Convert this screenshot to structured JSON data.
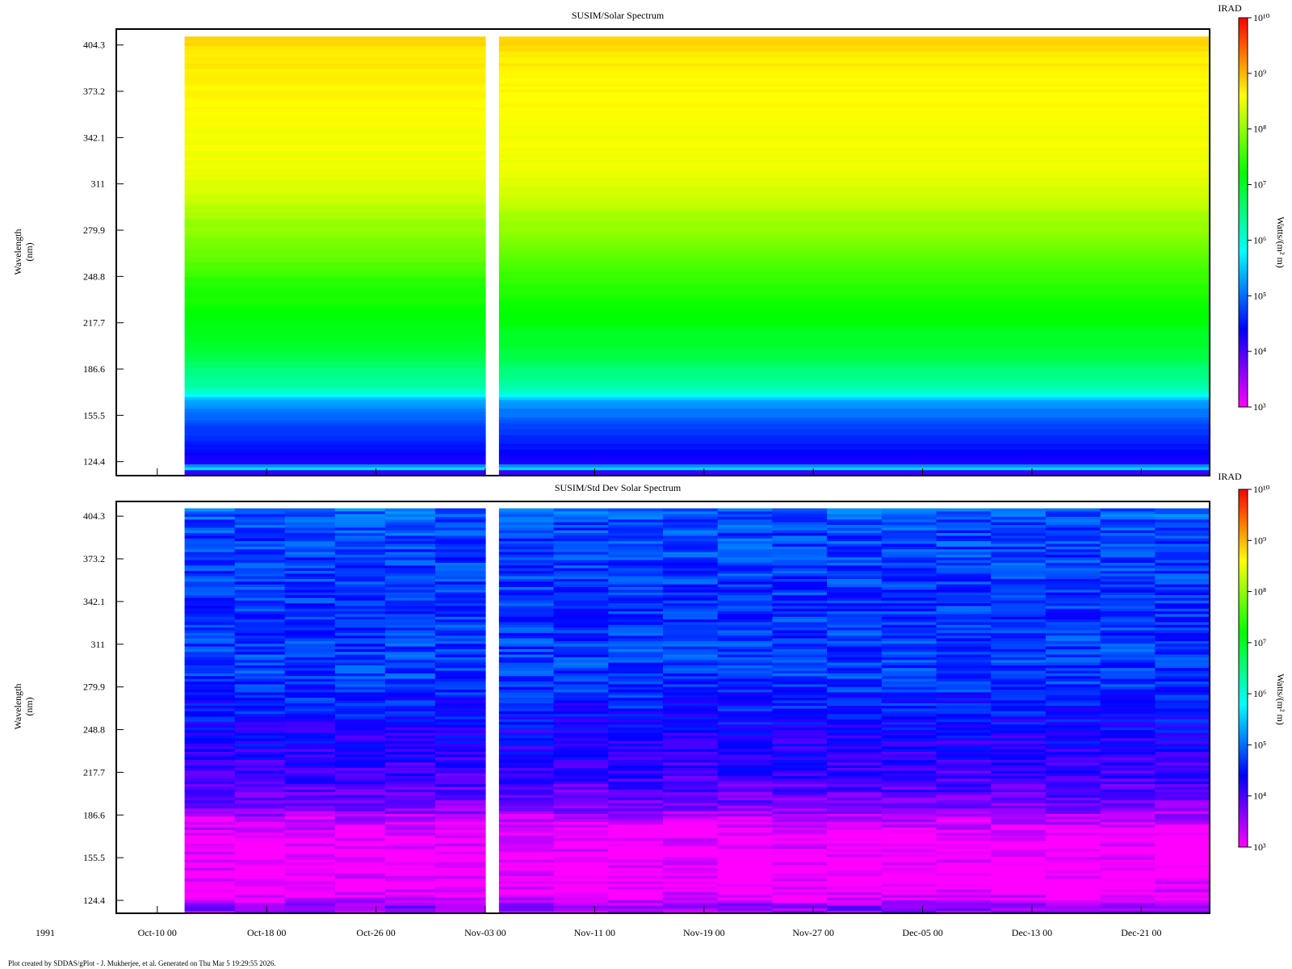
{
  "chart_data": [
    {
      "type": "heatmap",
      "title": "SUSIM/Solar Spectrum",
      "ylabel": "Wavelength",
      "yunit": "(nm)",
      "xlabel": "",
      "x_tick_labels": [
        "Oct-10 00",
        "Oct-18 00",
        "Oct-26 00",
        "Nov-03 00",
        "Nov-11 00",
        "Nov-19 00",
        "Nov-27 00",
        "Dec-05 00",
        "Dec-13 00",
        "Dec-21 00"
      ],
      "x_day_of_year": [
        283,
        291,
        299,
        307,
        315,
        323,
        331,
        339,
        347,
        355
      ],
      "xlim_doy": [
        280,
        360
      ],
      "data_start_doy": 285,
      "data_gap_doy": [
        307.0,
        308.0
      ],
      "y_tick_labels": [
        "124.4",
        "155.5",
        "186.6",
        "217.7",
        "248.8",
        "279.9",
        "311",
        "342.1",
        "373.2",
        "404.3"
      ],
      "ylim": [
        115,
        415
      ],
      "data_range_nm": [
        115,
        410
      ],
      "colorbar": {
        "title": "IRAD",
        "unit": "Watts/(m² m)",
        "scale": "log",
        "range": [
          1000,
          10000000000
        ]
      },
      "log10_irad_profile": {
        "wavelength_nm": [
          115,
          118,
          119,
          121,
          122,
          124,
          130,
          140,
          150,
          155,
          160,
          165,
          168,
          170,
          175,
          185,
          195,
          205,
          215,
          225,
          250,
          260,
          275,
          285,
          295,
          305,
          320,
          340,
          360,
          380,
          395,
          405,
          410
        ],
        "log10_irad": [
          4.1,
          4.1,
          5.2,
          6.0,
          5.1,
          4.2,
          4.4,
          4.6,
          4.8,
          5.0,
          5.1,
          5.3,
          5.6,
          6.0,
          6.3,
          6.5,
          6.8,
          7.0,
          7.1,
          7.2,
          7.5,
          7.7,
          7.9,
          8.05,
          8.2,
          8.35,
          8.5,
          8.55,
          8.6,
          8.65,
          8.7,
          8.8,
          8.85
        ]
      }
    },
    {
      "type": "heatmap",
      "title": "SUSIM/Std Dev Solar Spectrum",
      "ylabel": "Wavelength",
      "yunit": "(nm)",
      "xlabel": "",
      "x_tick_labels": [
        "Oct-10 00",
        "Oct-18 00",
        "Oct-26 00",
        "Nov-03 00",
        "Nov-11 00",
        "Nov-19 00",
        "Nov-27 00",
        "Dec-05 00",
        "Dec-13 00",
        "Dec-21 00"
      ],
      "x_day_of_year": [
        283,
        291,
        299,
        307,
        315,
        323,
        331,
        339,
        347,
        355
      ],
      "xlim_doy": [
        280,
        360
      ],
      "data_start_doy": 285,
      "data_gap_doy": [
        307.0,
        308.0
      ],
      "y_tick_labels": [
        "124.4",
        "155.5",
        "186.6",
        "217.7",
        "248.8",
        "279.9",
        "311",
        "342.1",
        "373.2",
        "404.3"
      ],
      "ylim": [
        115,
        415
      ],
      "data_range_nm": [
        115,
        410
      ],
      "colorbar": {
        "title": "IRAD",
        "unit": "Watts/(m² m)",
        "scale": "log",
        "range": [
          1000,
          10000000000
        ]
      },
      "log10_irad_profile": {
        "wavelength_nm": [
          115,
          120,
          125,
          135,
          150,
          165,
          175,
          185,
          190,
          200,
          210,
          225,
          245,
          260,
          270,
          285,
          300,
          320,
          340,
          360,
          380,
          400,
          410
        ],
        "log10_irad": [
          3.5,
          3.7,
          3.2,
          3.05,
          3.0,
          3.05,
          3.1,
          3.35,
          3.6,
          3.85,
          4.0,
          4.15,
          4.3,
          4.45,
          4.55,
          4.7,
          4.75,
          4.7,
          4.65,
          4.7,
          4.75,
          4.8,
          4.95
        ]
      }
    }
  ],
  "colorbar_ticks": [
    "10³",
    "10⁴",
    "10⁵",
    "10⁶",
    "10⁷",
    "10⁸",
    "10⁹",
    "10¹⁰"
  ],
  "year_label": "1991",
  "footer": "Plot created by SDDAS/gPlot - J. Mukherjee, et al.  Generated on Thu Mar 5 19:29:55 2026."
}
